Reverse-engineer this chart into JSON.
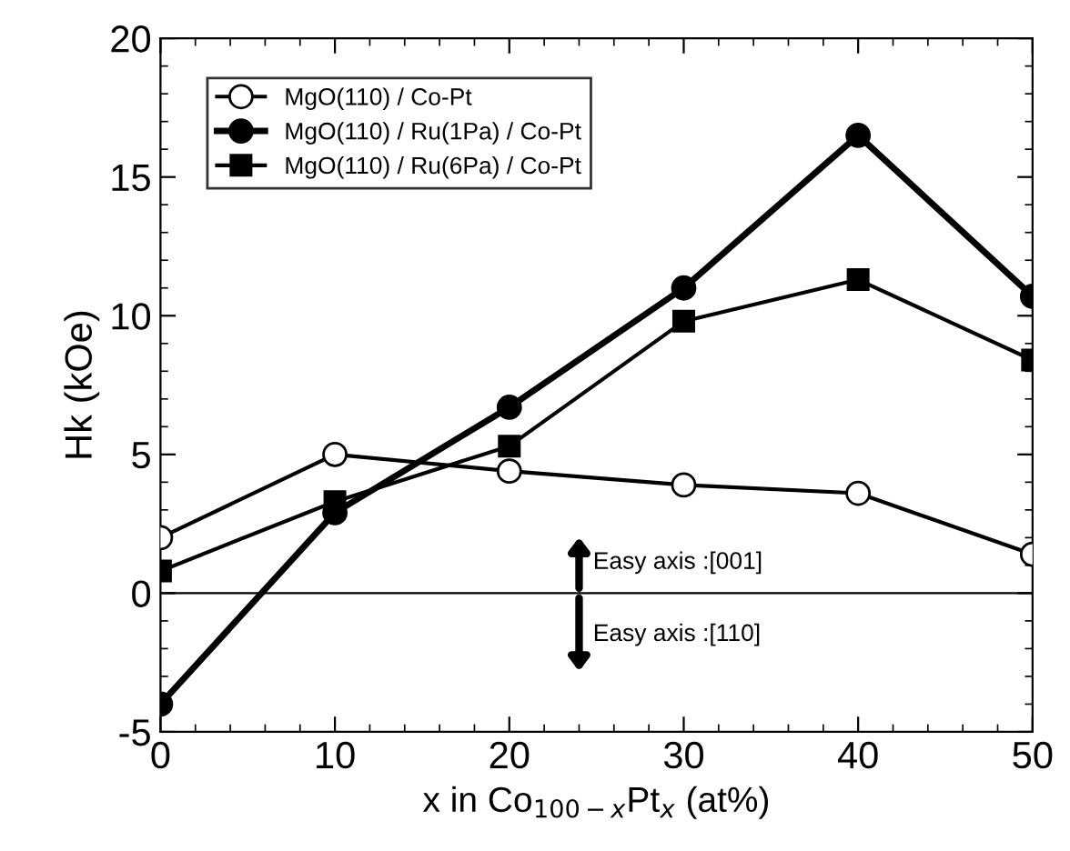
{
  "chart_data": {
    "type": "line",
    "xlabel": "x in Co$_{100−x}$Pt$_{x}$ (at%)",
    "ylabel": "Hk (kOe)",
    "x": [
      0,
      10,
      20,
      30,
      40,
      50
    ],
    "series": [
      {
        "name": "MgO(110) / Co-Pt",
        "color": "#000000",
        "marker": "circle",
        "values": [
          2.0,
          5.0,
          4.4,
          3.9,
          3.6,
          1.4
        ]
      },
      {
        "name": "MgO(110) / Ru(1Pa) / Co-Pt",
        "color": "#000000",
        "marker": "circle",
        "values": [
          -4.0,
          2.9,
          6.7,
          11.0,
          16.5,
          10.7
        ]
      },
      {
        "name": "MgO(110) / Ru(6Pa) / Co-Pt",
        "color": "#000000",
        "marker": "square",
        "values": [
          0.8,
          3.3,
          5.3,
          9.8,
          11.3,
          8.4
        ]
      }
    ],
    "xlim": [
      0,
      50
    ],
    "xticks": [
      0,
      10,
      20,
      30,
      40,
      50
    ],
    "ylim": [
      -5,
      20
    ],
    "yticks": [
      -5,
      0,
      5,
      10,
      15,
      20
    ],
    "ref_lines": [
      {
        "axis": "y",
        "value": 0,
        "color": "#000000"
      }
    ],
    "annotations": [
      "Easy axis :[001]",
      "Easy axis :[110]"
    ],
    "legend": "top left",
    "grid": false
  }
}
